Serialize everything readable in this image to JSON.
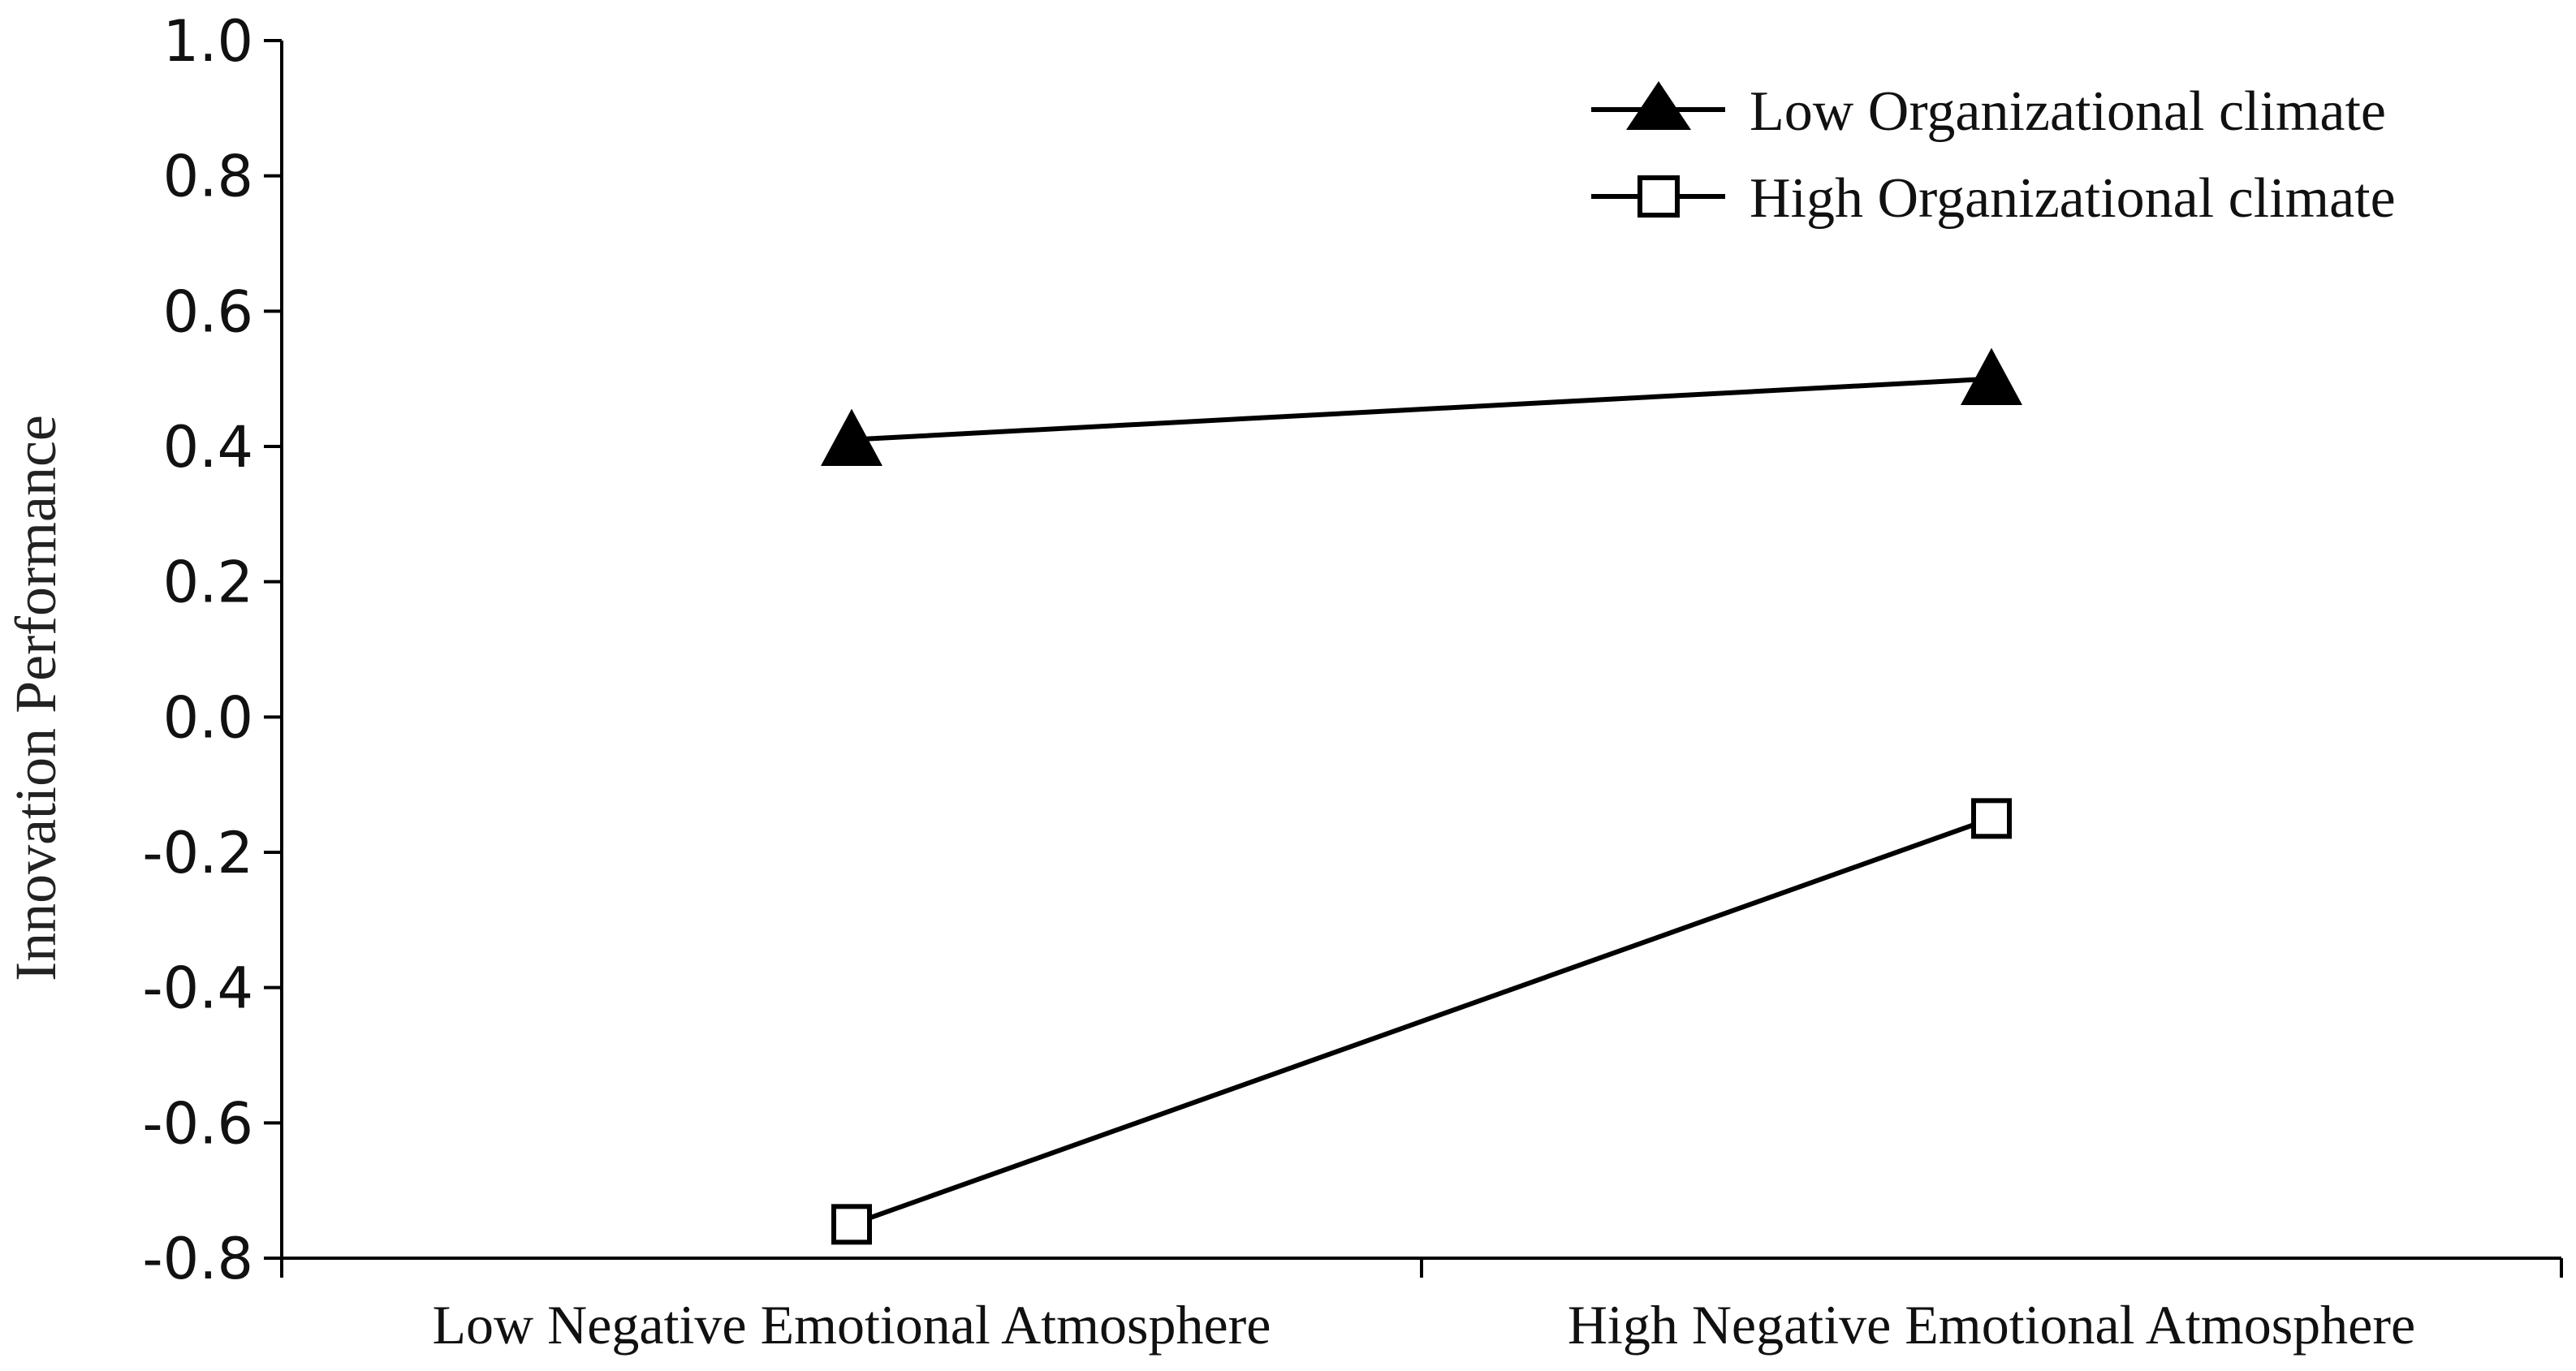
{
  "chart_data": {
    "type": "line",
    "ylabel": "Innovation Performance",
    "ylim": [
      -0.8,
      1.0
    ],
    "yticks": [
      "1.0",
      "0.8",
      "0.6",
      "0.4",
      "0.2",
      "0.0",
      "-0.2",
      "-0.4",
      "-0.6",
      "-0.8"
    ],
    "categories": [
      "Low Negative Emotional Atmosphere",
      "High Negative Emotional Atmosphere"
    ],
    "series": [
      {
        "name": "Low Organizational climate",
        "marker": "filled-triangle",
        "color": "#000000",
        "values": [
          0.41,
          0.5
        ]
      },
      {
        "name": "High Organizational climate",
        "marker": "hollow-square",
        "color": "#000000",
        "values": [
          -0.75,
          -0.15
        ]
      }
    ],
    "legend_position": "top-right",
    "grid": false
  }
}
